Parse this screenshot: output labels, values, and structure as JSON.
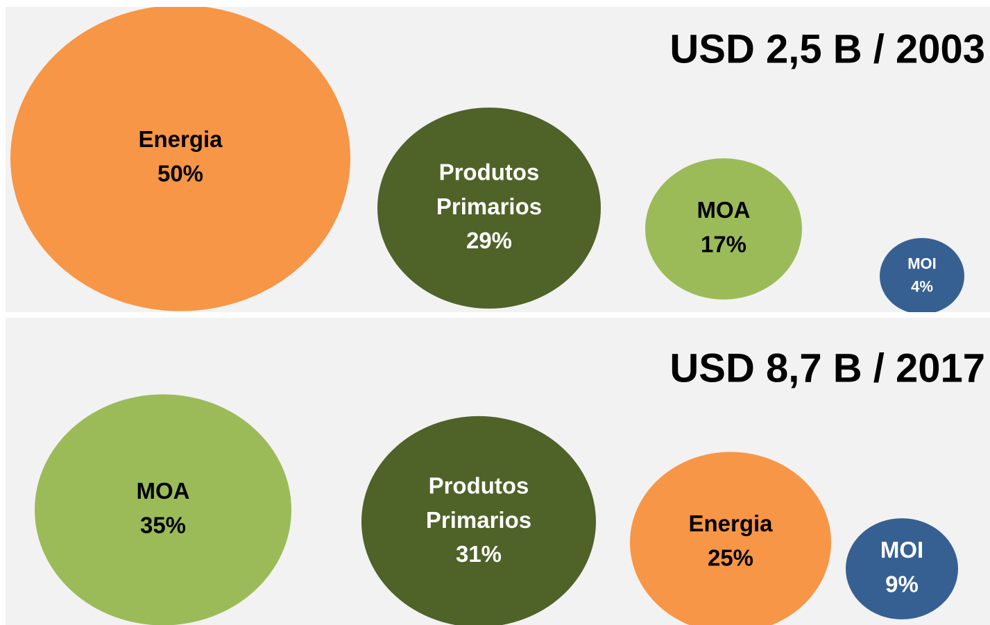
{
  "chart_data": [
    {
      "type": "bubble",
      "title": "USD 2,5 B / 2003",
      "categories": [
        "Energia",
        "Produtos Primarios",
        "MOA",
        "MOI"
      ],
      "values": [
        50,
        29,
        17,
        4
      ],
      "value_labels": [
        "50%",
        "29%",
        "17%",
        "4%"
      ],
      "colors": [
        "#f79646",
        "#4f6228",
        "#9bbb59",
        "#366092"
      ]
    },
    {
      "type": "bubble",
      "title": "USD 8,7 B / 2017",
      "categories": [
        "MOA",
        "Produtos Primarios",
        "Energia",
        "MOI"
      ],
      "values": [
        35,
        31,
        25,
        9
      ],
      "value_labels": [
        "35%",
        "31%",
        "25%",
        "9%"
      ],
      "colors": [
        "#9bbb59",
        "#4f6228",
        "#f79646",
        "#366092"
      ]
    }
  ]
}
